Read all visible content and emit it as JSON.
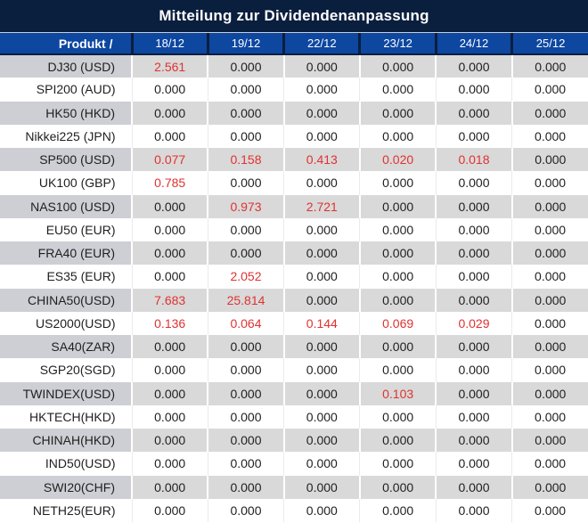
{
  "title": "Mitteilung zur Dividendenanpassung",
  "table": {
    "product_header": "Produkt /",
    "date_headers": [
      "18/12",
      "19/12",
      "22/12",
      "23/12",
      "24/12",
      "25/12"
    ],
    "rows": [
      {
        "product": "DJ30 (USD)",
        "values": [
          "2.561",
          "0.000",
          "0.000",
          "0.000",
          "0.000",
          "0.000"
        ]
      },
      {
        "product": "SPI200 (AUD)",
        "values": [
          "0.000",
          "0.000",
          "0.000",
          "0.000",
          "0.000",
          "0.000"
        ]
      },
      {
        "product": "HK50 (HKD)",
        "values": [
          "0.000",
          "0.000",
          "0.000",
          "0.000",
          "0.000",
          "0.000"
        ]
      },
      {
        "product": "Nikkei225 (JPN)",
        "values": [
          "0.000",
          "0.000",
          "0.000",
          "0.000",
          "0.000",
          "0.000"
        ]
      },
      {
        "product": "SP500 (USD)",
        "values": [
          "0.077",
          "0.158",
          "0.413",
          "0.020",
          "0.018",
          "0.000"
        ]
      },
      {
        "product": "UK100 (GBP)",
        "values": [
          "0.785",
          "0.000",
          "0.000",
          "0.000",
          "0.000",
          "0.000"
        ]
      },
      {
        "product": "NAS100 (USD)",
        "values": [
          "0.000",
          "0.973",
          "2.721",
          "0.000",
          "0.000",
          "0.000"
        ]
      },
      {
        "product": "EU50 (EUR)",
        "values": [
          "0.000",
          "0.000",
          "0.000",
          "0.000",
          "0.000",
          "0.000"
        ]
      },
      {
        "product": "FRA40 (EUR)",
        "values": [
          "0.000",
          "0.000",
          "0.000",
          "0.000",
          "0.000",
          "0.000"
        ]
      },
      {
        "product": "ES35 (EUR)",
        "values": [
          "0.000",
          "2.052",
          "0.000",
          "0.000",
          "0.000",
          "0.000"
        ]
      },
      {
        "product": "CHINA50(USD)",
        "values": [
          "7.683",
          "25.814",
          "0.000",
          "0.000",
          "0.000",
          "0.000"
        ]
      },
      {
        "product": "US2000(USD)",
        "values": [
          "0.136",
          "0.064",
          "0.144",
          "0.069",
          "0.029",
          "0.000"
        ]
      },
      {
        "product": "SA40(ZAR)",
        "values": [
          "0.000",
          "0.000",
          "0.000",
          "0.000",
          "0.000",
          "0.000"
        ]
      },
      {
        "product": "SGP20(SGD)",
        "values": [
          "0.000",
          "0.000",
          "0.000",
          "0.000",
          "0.000",
          "0.000"
        ]
      },
      {
        "product": "TWINDEX(USD)",
        "values": [
          "0.000",
          "0.000",
          "0.000",
          "0.103",
          "0.000",
          "0.000"
        ]
      },
      {
        "product": "HKTECH(HKD)",
        "values": [
          "0.000",
          "0.000",
          "0.000",
          "0.000",
          "0.000",
          "0.000"
        ]
      },
      {
        "product": "CHINAH(HKD)",
        "values": [
          "0.000",
          "0.000",
          "0.000",
          "0.000",
          "0.000",
          "0.000"
        ]
      },
      {
        "product": "IND50(USD)",
        "values": [
          "0.000",
          "0.000",
          "0.000",
          "0.000",
          "0.000",
          "0.000"
        ]
      },
      {
        "product": "SWI20(CHF)",
        "values": [
          "0.000",
          "0.000",
          "0.000",
          "0.000",
          "0.000",
          "0.000"
        ]
      },
      {
        "product": "NETH25(EUR)",
        "values": [
          "0.000",
          "0.000",
          "0.000",
          "0.000",
          "0.000",
          "0.000"
        ]
      }
    ],
    "zero_value": "0.000"
  },
  "colors": {
    "title_bg": "#0a1e3e",
    "header_bg": "#0d47a0",
    "header_divider": "#0a1e3e",
    "header_text": "#ffffff",
    "row_gray": "#d9d9d9",
    "product_gray": "#cdcfd4",
    "row_white": "#ffffff",
    "white_divider": "#ffffff",
    "light_divider": "#ebebeb",
    "value_red": "#e03231",
    "value_black": "#1f1f1f"
  }
}
